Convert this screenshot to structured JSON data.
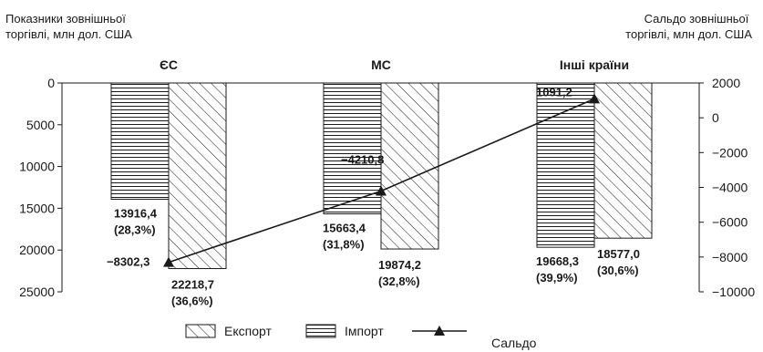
{
  "chart_data": {
    "type": "bar",
    "left_axis_title": [
      "Показники зовнішньої",
      "торгівлі, млн дол. США"
    ],
    "right_axis_title": [
      "Сальдо зовнішньої",
      "торгівлі, млн дол. США"
    ],
    "categories": [
      "ЄС",
      "МС",
      "Інші країни"
    ],
    "left_axis": {
      "range": [
        0,
        25000
      ],
      "ticks": [
        "0",
        "5000",
        "10000",
        "15000",
        "20000",
        "25000"
      ],
      "inverted": true
    },
    "right_axis": {
      "range": [
        -10000,
        2000
      ],
      "ticks": [
        "2000",
        "0",
        "−2000",
        "−4000",
        "−6000",
        "−8000",
        "−10000"
      ]
    },
    "series": [
      {
        "name": "Імпорт",
        "kind": "bar",
        "pattern": "horizontal-hatch",
        "values": [
          13916.4,
          15663.4,
          19668.3
        ],
        "labels": [
          [
            "13916,4",
            "(28,3%)"
          ],
          [
            "15663,4",
            "(31,8%)"
          ],
          [
            "19668,3",
            "(39,9%)"
          ]
        ]
      },
      {
        "name": "Експорт",
        "kind": "bar",
        "pattern": "diagonal-hatch",
        "values": [
          22218.7,
          19874.2,
          18577.0
        ],
        "labels": [
          [
            "22218,7",
            "(36,6%)"
          ],
          [
            "19874,2",
            "(32,8%)"
          ],
          [
            "18577,0",
            "(30,6%)"
          ]
        ]
      },
      {
        "name": "Сальдо",
        "kind": "line",
        "marker": "triangle",
        "axis": "right",
        "values": [
          -8302.3,
          -4210.8,
          1091.2
        ],
        "labels": [
          "−8302,3",
          "−4210,8",
          "1091,2"
        ]
      }
    ],
    "legend": {
      "placement": "bottom",
      "order": [
        "Експорт",
        "Імпорт",
        "Сальдо"
      ]
    },
    "grid": false,
    "colors": {
      "ink": "#1a1a1a",
      "background": "#ffffff"
    }
  }
}
